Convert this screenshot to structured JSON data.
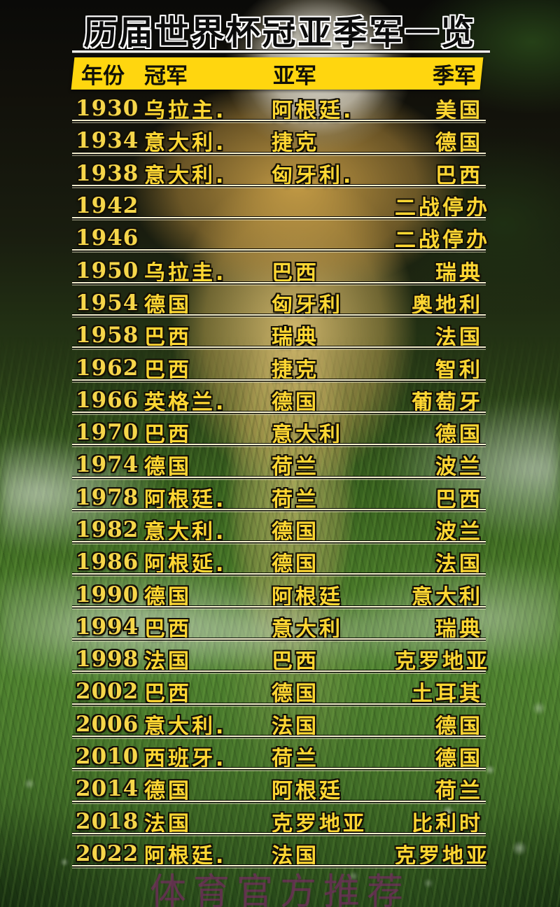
{
  "page": {
    "title": "历届世界杯冠亚季军一览",
    "watermark": "体育官方推荐"
  },
  "table": {
    "headers": {
      "year": "年份",
      "champion": "冠军",
      "runner_up": "亚军",
      "third": "季军"
    },
    "rows": [
      {
        "year": "1930",
        "champion": "乌拉主.",
        "runner_up": "阿根廷.",
        "third": "美国"
      },
      {
        "year": "1934",
        "champion": "意大利.",
        "runner_up": "捷克",
        "third": "德国"
      },
      {
        "year": "1938",
        "champion": "意大利.",
        "runner_up": "匈牙利.",
        "third": "巴西"
      },
      {
        "year": "1942",
        "champion": "",
        "runner_up": "",
        "third": "二战停办"
      },
      {
        "year": "1946",
        "champion": "",
        "runner_up": "",
        "third": "二战停办"
      },
      {
        "year": "1950",
        "champion": "乌拉圭.",
        "runner_up": "巴西",
        "third": "瑞典"
      },
      {
        "year": "1954",
        "champion": "德国",
        "runner_up": "匈牙利",
        "third": "奥地利"
      },
      {
        "year": "1958",
        "champion": "巴西",
        "runner_up": "瑞典",
        "third": "法国"
      },
      {
        "year": "1962",
        "champion": "巴西",
        "runner_up": "捷克",
        "third": "智利"
      },
      {
        "year": "1966",
        "champion": "英格兰.",
        "runner_up": "德国",
        "third": "葡萄牙"
      },
      {
        "year": "1970",
        "champion": "巴西",
        "runner_up": "意大利",
        "third": "德国"
      },
      {
        "year": "1974",
        "champion": "德国",
        "runner_up": "荷兰",
        "third": "波兰"
      },
      {
        "year": "1978",
        "champion": "阿根廷.",
        "runner_up": "荷兰",
        "third": "巴西"
      },
      {
        "year": "1982",
        "champion": "意大利.",
        "runner_up": "德国",
        "third": "波兰"
      },
      {
        "year": "1986",
        "champion": "阿根延.",
        "runner_up": "德国",
        "third": "法国"
      },
      {
        "year": "1990",
        "champion": "德国",
        "runner_up": "阿根廷",
        "third": "意大利"
      },
      {
        "year": "1994",
        "champion": "巴西",
        "runner_up": "意大利",
        "third": "瑞典"
      },
      {
        "year": "1998",
        "champion": "法国",
        "runner_up": "巴西",
        "third": "克罗地亚"
      },
      {
        "year": "2002",
        "champion": "巴西",
        "runner_up": "德国",
        "third": "土耳其"
      },
      {
        "year": "2006",
        "champion": "意大利.",
        "runner_up": "法国",
        "third": "德国"
      },
      {
        "year": "2010",
        "champion": "西班牙.",
        "runner_up": "荷兰",
        "third": "德国"
      },
      {
        "year": "2014",
        "champion": "德国",
        "runner_up": "阿根廷",
        "third": "荷兰"
      },
      {
        "year": "2018",
        "champion": "法国",
        "runner_up": "克罗地亚",
        "third": "比利时"
      },
      {
        "year": "2022",
        "champion": "阿根廷.",
        "runner_up": "法国",
        "third": "克罗地亚"
      }
    ]
  },
  "colors": {
    "header_bg": "#ffd60f",
    "row_text_yellow": "#ffd733",
    "year_text_yellow": "#f6d64a",
    "title_text": "#0c0c0c",
    "title_outline": "#ffffff",
    "watermark_text": "#822d69"
  }
}
